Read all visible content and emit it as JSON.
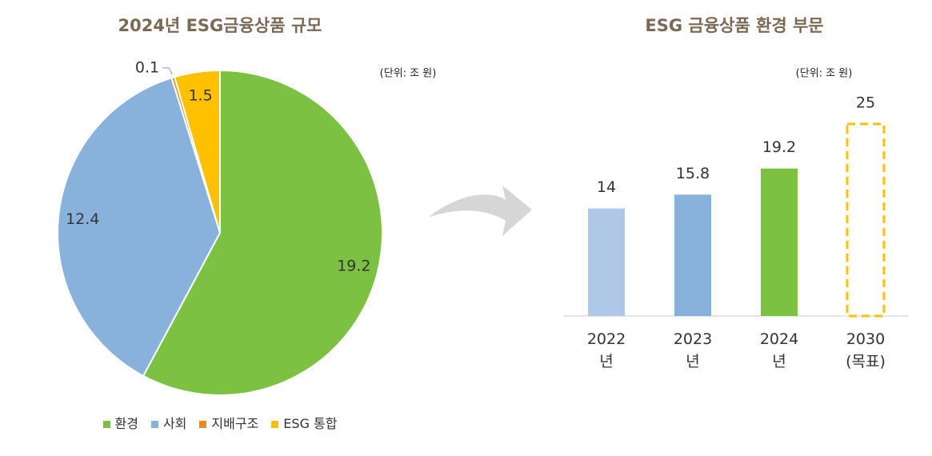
{
  "chart_data": [
    {
      "type": "pie",
      "title": "2024년 ESG금융상품 규모",
      "note": "(단위: 조 원)",
      "categories": [
        "환경",
        "사회",
        "지배구조",
        "ESG 통합"
      ],
      "values": [
        19.2,
        12.4,
        0.1,
        1.5
      ],
      "colors": [
        "#7dc142",
        "#88b2dc",
        "#e98a1c",
        "#ffc000"
      ]
    },
    {
      "type": "bar",
      "title": "ESG 금융상품 환경 부문",
      "note": "(단위: 조 원)",
      "categories": [
        "2022년",
        "2023년",
        "2024년",
        "2030 (목표)"
      ],
      "values": [
        14,
        15.8,
        19.2,
        25
      ],
      "colors": [
        "#b0c8e8",
        "#88b2dc",
        "#7dc142",
        "#ffc000"
      ],
      "styles": [
        "solid",
        "solid",
        "solid",
        "dashed"
      ],
      "ylim": [
        0,
        25
      ]
    }
  ]
}
